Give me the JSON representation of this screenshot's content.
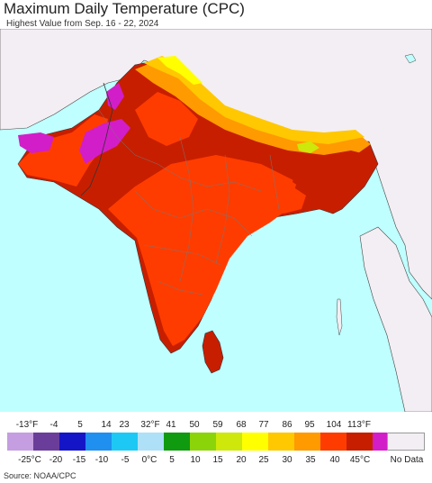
{
  "header": {
    "title": "Maximum Daily Temperature (CPC)",
    "subtitle": "Highest Value from Sep. 16 - 22, 2024"
  },
  "legend": {
    "fahrenheit_ticks": [
      "-13°F",
      "-4",
      "5",
      "14",
      "23",
      "32°F",
      "41",
      "50",
      "59",
      "68",
      "77",
      "86",
      "95",
      "104",
      "113°F"
    ],
    "celsius_ticks": [
      "-25°C",
      "-20",
      "-15",
      "-10",
      "-5",
      "0°C",
      "5",
      "10",
      "15",
      "20",
      "25",
      "30",
      "35",
      "40",
      "45°C"
    ],
    "colors": [
      "#c49ee0",
      "#6a3d9a",
      "#1515c8",
      "#1f8ff0",
      "#1ec8f5",
      "#aee0f8",
      "#109a10",
      "#8cd40a",
      "#cde80a",
      "#ffff00",
      "#ffc800",
      "#ff9a00",
      "#ff3c00",
      "#c81e00",
      "#d21ec8",
      "#f07ad2"
    ],
    "no_data_label": "No Data",
    "no_data_color": "#f3eef3"
  },
  "map": {
    "ocean_color": "#bfffff",
    "land_outside_color": "#f3eef3"
  },
  "footer": {
    "source": "Source: NOAA/CPC"
  }
}
